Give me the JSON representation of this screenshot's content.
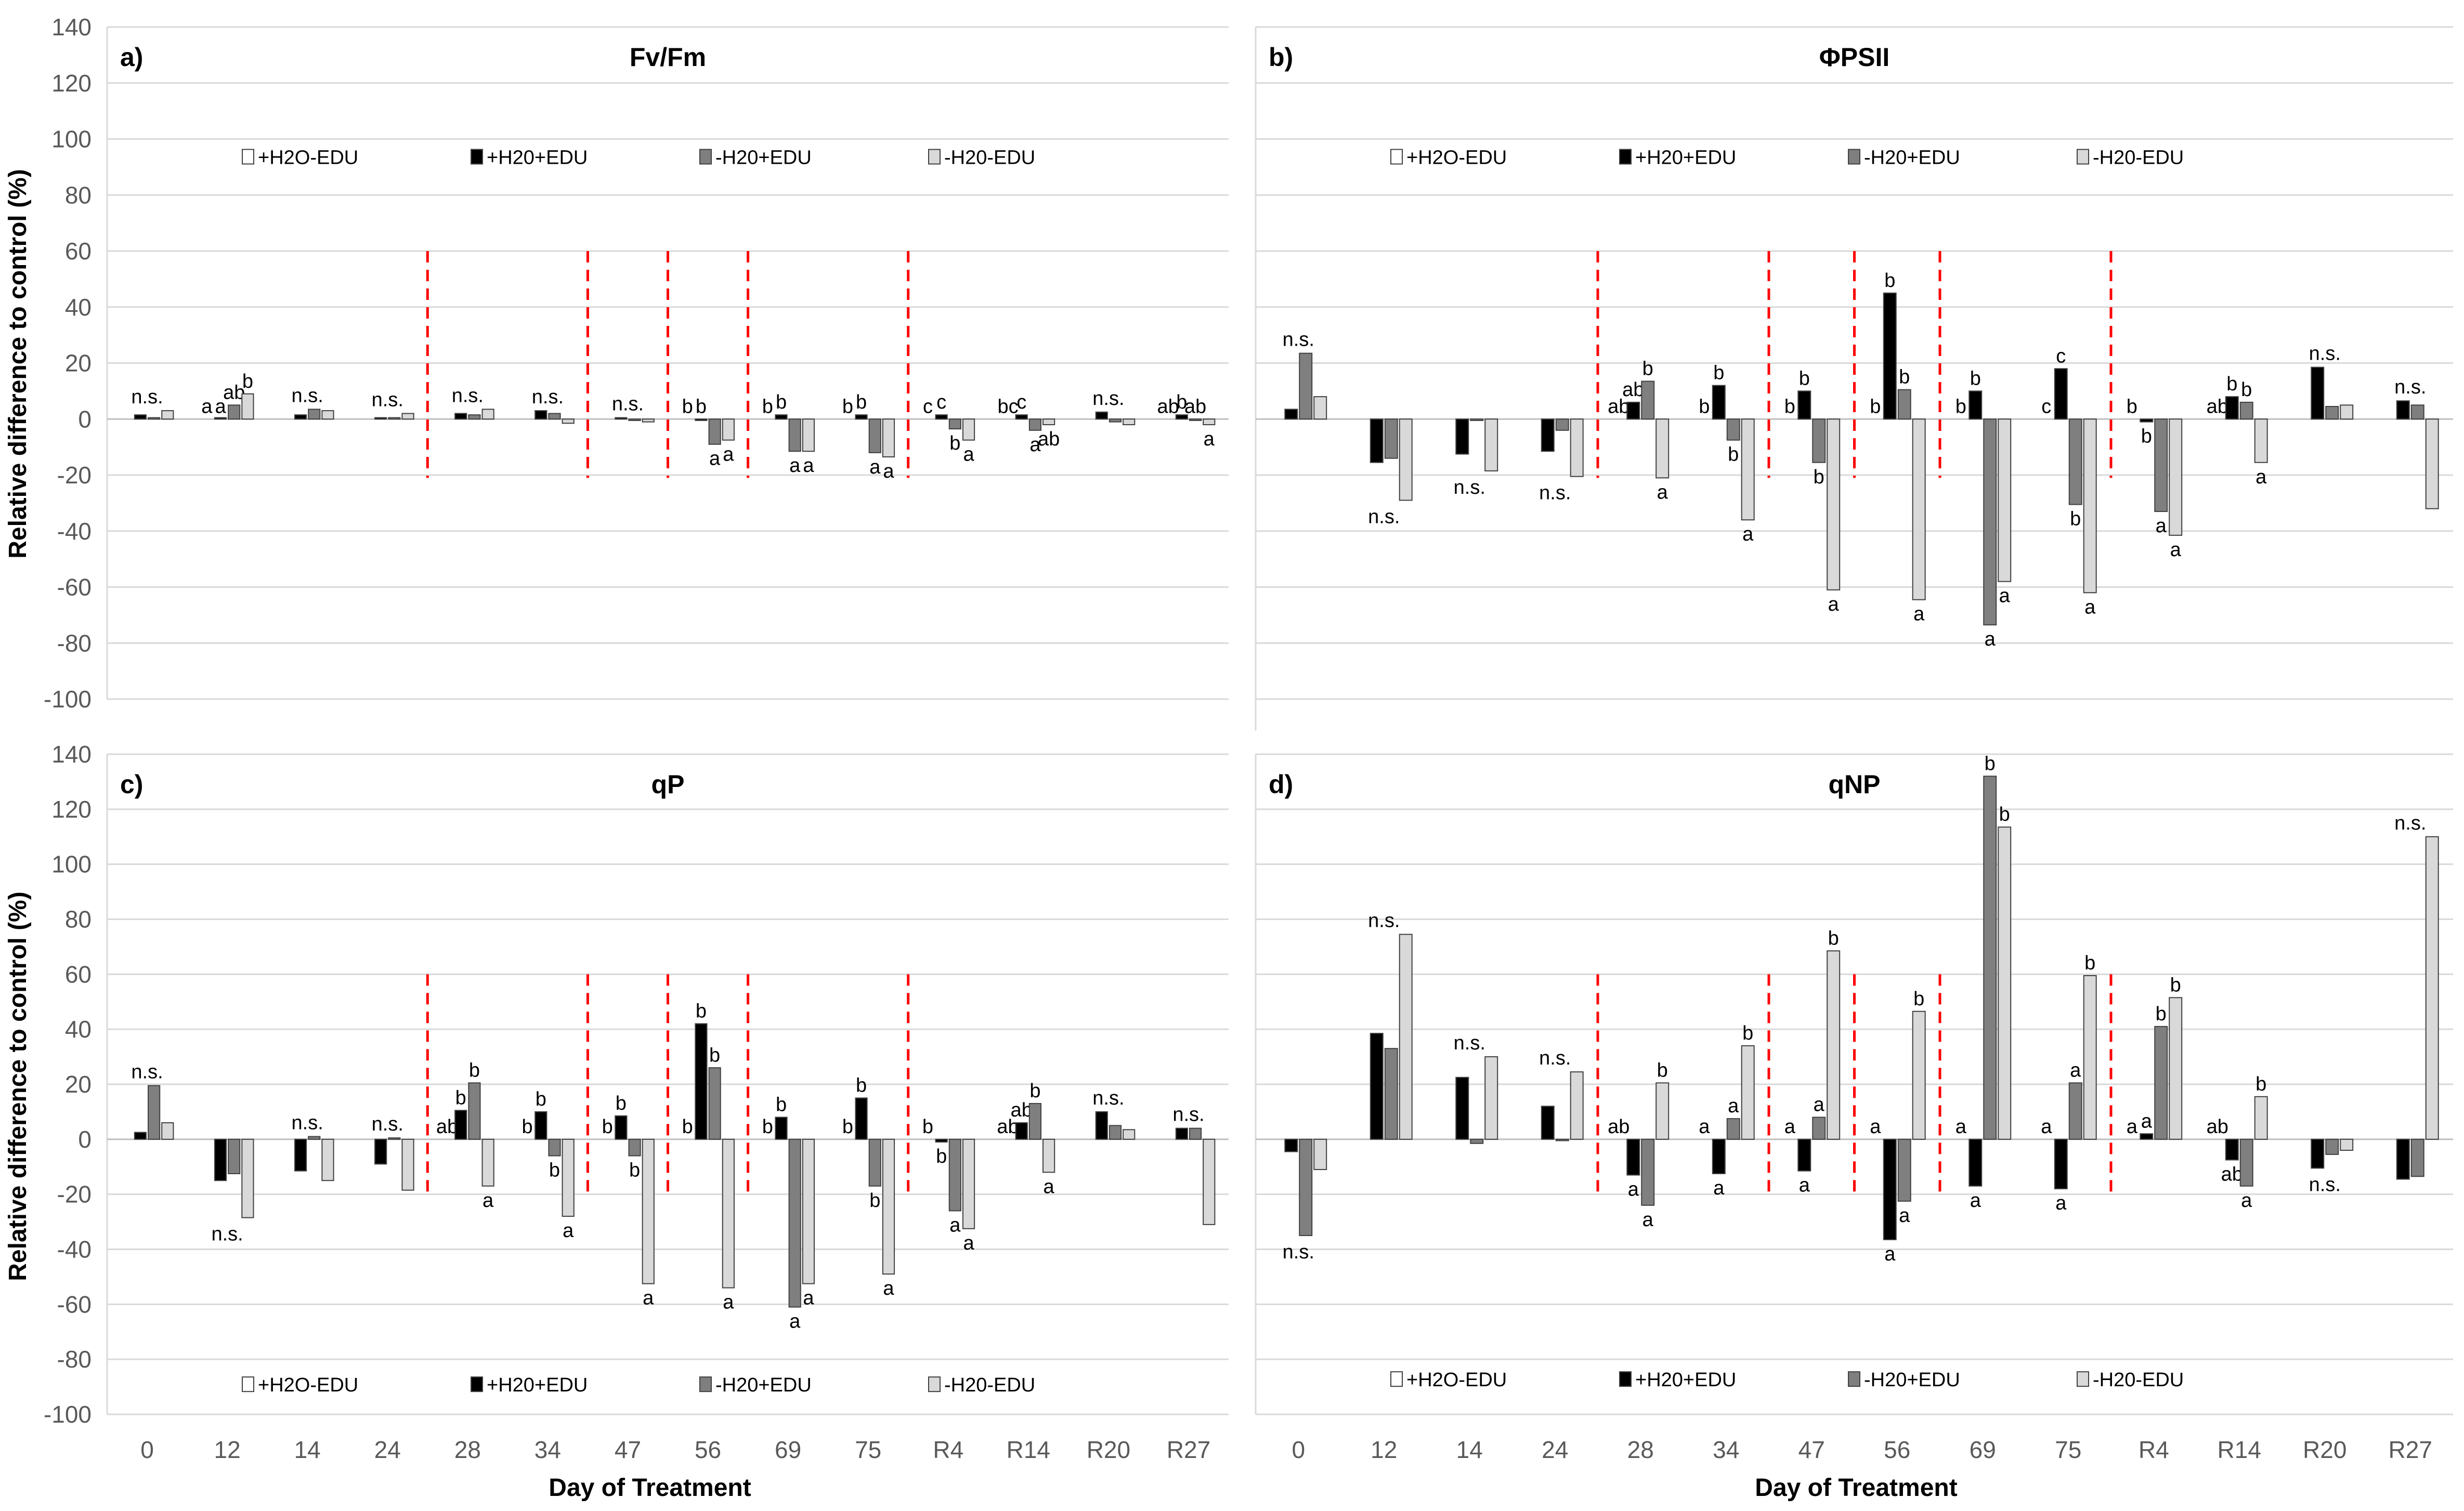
{
  "chart_data": {
    "type": "bar",
    "ylabel": "Relative difference to control (%)",
    "xlabel": "Day of Treatment",
    "ylim": [
      -100,
      140
    ],
    "yticks": [
      140,
      120,
      100,
      80,
      60,
      40,
      20,
      0,
      -20,
      -40,
      -60,
      -80,
      -100
    ],
    "grid": true,
    "categories": [
      "0",
      "12",
      "14",
      "24",
      "28",
      "34",
      "47",
      "56",
      "69",
      "75",
      "R4",
      "R14",
      "R20",
      "R27"
    ],
    "separators_before": [
      "28",
      "47",
      "56",
      "69",
      "R4"
    ],
    "legend_labels": [
      "+H2O-EDU",
      "+H20+EDU",
      "-H20+EDU",
      "-H20-EDU"
    ],
    "series_colors": [
      "#ffffff",
      "#000000",
      "#7f7f7f",
      "#d9d9d9"
    ],
    "ns_label": "n.s.",
    "panels": [
      {
        "tag": "a)",
        "title": "Fv/Fm",
        "legend_position": "top",
        "series": [
          {
            "name": "+H2O-EDU",
            "values": [
              0,
              0,
              0,
              0,
              0,
              0,
              0,
              0,
              0,
              0,
              0,
              0,
              0,
              0
            ]
          },
          {
            "name": "+H20+EDU",
            "values": [
              1.5,
              0.5,
              1.5,
              0.5,
              2,
              3,
              0.5,
              -0.5,
              1.5,
              1.5,
              1.5,
              1.5,
              2.5,
              1.5
            ]
          },
          {
            "name": "-H20+EDU",
            "values": [
              0.5,
              5,
              3.5,
              0.5,
              1.5,
              2,
              -0.5,
              -9,
              -11.5,
              -12,
              -3.5,
              -4,
              -1,
              -0.5
            ]
          },
          {
            "name": "-H20-EDU",
            "values": [
              3,
              9,
              3,
              2,
              3.5,
              -1.5,
              -1,
              -7.5,
              -11.5,
              -13.5,
              -7.5,
              -2,
              -2,
              -2
            ]
          }
        ],
        "letters": [
          "n.s.",
          [
            "a",
            "a",
            "ab",
            "b"
          ],
          "n.s.",
          "n.s.",
          "n.s.",
          "n.s.",
          "n.s.",
          [
            "b",
            "b",
            "a",
            "a"
          ],
          [
            "b",
            "b",
            "a",
            "a"
          ],
          [
            "b",
            "b",
            "a",
            "a"
          ],
          [
            "c",
            "c",
            "b",
            "a"
          ],
          [
            "bc",
            "c",
            "a",
            "ab"
          ],
          "n.s.",
          [
            "ab",
            "b",
            "ab",
            "a"
          ]
        ]
      },
      {
        "tag": "b)",
        "title": "ΦPSII",
        "legend_position": "top",
        "series": [
          {
            "name": "+H2O-EDU",
            "values": [
              0,
              0,
              0,
              0,
              0,
              0,
              0,
              0,
              0,
              0,
              0,
              0,
              0,
              0
            ]
          },
          {
            "name": "+H20+EDU",
            "values": [
              3.5,
              -15.5,
              -12.5,
              -11.5,
              6,
              12,
              10,
              45,
              10,
              18,
              -1,
              8,
              18.5,
              6.5
            ]
          },
          {
            "name": "-H20+EDU",
            "values": [
              23.5,
              -14,
              -0.5,
              -4,
              13.5,
              -7.5,
              -15.5,
              10.5,
              -73.5,
              -30.5,
              -33,
              6,
              4.5,
              5
            ]
          },
          {
            "name": "-H20-EDU",
            "values": [
              8,
              -29,
              -18.5,
              -20.5,
              -21,
              -36,
              -61,
              -64.5,
              -58,
              -62,
              -41.5,
              -15.5,
              5,
              -32
            ]
          }
        ],
        "letters": [
          "n.s.",
          "n.s.",
          "n.s.",
          "n.s.",
          [
            "ab",
            "ab",
            "b",
            "a"
          ],
          [
            "b",
            "b",
            "b",
            "a"
          ],
          [
            "b",
            "b",
            "b",
            "a"
          ],
          [
            "b",
            "b",
            "b",
            "a"
          ],
          [
            "b",
            "b",
            "a",
            "a"
          ],
          [
            "c",
            "c",
            "b",
            "a"
          ],
          [
            "b",
            "b",
            "a",
            "a"
          ],
          [
            "ab",
            "b",
            "b",
            "a"
          ],
          "n.s.",
          "n.s."
        ]
      },
      {
        "tag": "c)",
        "title": "qP",
        "legend_position": "bottom",
        "series": [
          {
            "name": "+H2O-EDU",
            "values": [
              0,
              0,
              0,
              0,
              0,
              0,
              0,
              0,
              0,
              0,
              0,
              0,
              0,
              0
            ]
          },
          {
            "name": "+H20+EDU",
            "values": [
              2.5,
              -15,
              -11.5,
              -9,
              10.5,
              10,
              8.5,
              42,
              8,
              15,
              -1,
              6,
              10,
              4
            ]
          },
          {
            "name": "-H20+EDU",
            "values": [
              19.5,
              -12.5,
              1,
              0.5,
              20.5,
              -6,
              -6,
              26,
              -61,
              -17,
              -26,
              13,
              5,
              4
            ]
          },
          {
            "name": "-H20-EDU",
            "values": [
              6,
              -28.5,
              -15,
              -18.5,
              -17,
              -28,
              -52.5,
              -54,
              -52.5,
              -49,
              -32.5,
              -12,
              3.5,
              -31
            ]
          }
        ],
        "letters": [
          "n.s.",
          "n.s.",
          "n.s.",
          "n.s.",
          [
            "ab",
            "b",
            "b",
            "a"
          ],
          [
            "b",
            "b",
            "b",
            "a"
          ],
          [
            "b",
            "b",
            "b",
            "a"
          ],
          [
            "b",
            "b",
            "b",
            "a"
          ],
          [
            "b",
            "b",
            "a",
            "a"
          ],
          [
            "b",
            "b",
            "b",
            "a"
          ],
          [
            "b",
            "b",
            "a",
            "a"
          ],
          [
            "ab",
            "ab",
            "b",
            "a"
          ],
          "n.s.",
          "n.s."
        ]
      },
      {
        "tag": "d)",
        "title": "qNP",
        "legend_position": "bottom",
        "series": [
          {
            "name": "+H2O-EDU",
            "values": [
              0,
              0,
              0,
              0,
              0,
              0,
              0,
              0,
              0,
              0,
              0,
              0,
              0,
              0
            ]
          },
          {
            "name": "+H20+EDU",
            "values": [
              -4.5,
              38.5,
              22.5,
              12,
              -13,
              -12.5,
              -11.5,
              -36.5,
              -17,
              -18,
              2,
              -7.5,
              -10.5,
              -14.5
            ]
          },
          {
            "name": "-H20+EDU",
            "values": [
              -35,
              33,
              -1.5,
              -0.5,
              -24,
              7.5,
              8,
              -22.5,
              132,
              20.5,
              41,
              -17,
              -5.5,
              -13.5
            ]
          },
          {
            "name": "-H20-EDU",
            "values": [
              -11,
              74.5,
              30,
              24.5,
              20.5,
              34,
              68.5,
              46.5,
              113.5,
              59.5,
              51.5,
              15.5,
              -4,
              110
            ]
          }
        ],
        "letters": [
          "n.s.",
          "n.s.",
          "n.s.",
          "n.s.",
          [
            "ab",
            "a",
            "a",
            "b"
          ],
          [
            "a",
            "a",
            "a",
            "b"
          ],
          [
            "a",
            "a",
            "a",
            "b"
          ],
          [
            "a",
            "a",
            "a",
            "b"
          ],
          [
            "a",
            "a",
            "b",
            "b"
          ],
          [
            "a",
            "a",
            "a",
            "b"
          ],
          [
            "a",
            "a",
            "b",
            "b"
          ],
          [
            "ab",
            "ab",
            "a",
            "b"
          ],
          "n.s.",
          "n.s."
        ]
      }
    ]
  }
}
